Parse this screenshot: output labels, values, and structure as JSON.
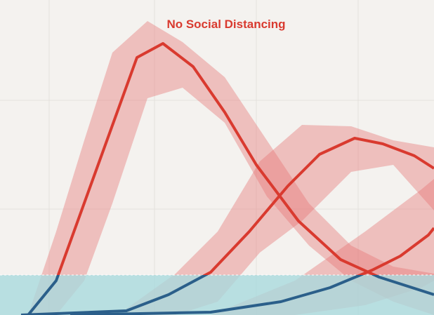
{
  "chart_data": {
    "type": "band-line",
    "title": "No Social Distancing",
    "xlim": [
      0,
      618
    ],
    "ylim": [
      0,
      449
    ],
    "xticks": [
      70,
      220,
      365,
      510
    ],
    "yticks": [
      151,
      306
    ],
    "grid": true,
    "capacity": 57,
    "line_color": "#d93a2f",
    "below_color": "#2b5f8a",
    "band_color": "#e57373",
    "capacity_color": "#a9d9dd",
    "bands": [
      {
        "x": [
          40,
          80,
          120,
          160,
          210,
          260,
          320,
          380,
          440,
          500,
          560,
          618
        ],
        "upper": [
          0,
          119,
          249,
          374,
          419,
          389,
          339,
          249,
          159,
          99,
          69,
          59
        ],
        "lower": [
          0,
          0,
          49,
          159,
          309,
          324,
          274,
          169,
          99,
          49,
          19,
          0
        ]
      },
      {
        "x": [
          180,
          250,
          310,
          370,
          430,
          500,
          560,
          618
        ],
        "upper": [
          9,
          59,
          119,
          219,
          271,
          269,
          249,
          239
        ],
        "lower": [
          0,
          0,
          19,
          89,
          134,
          204,
          214,
          149
        ]
      },
      {
        "x": [
          300,
          420,
          520,
          600,
          618
        ],
        "upper": [
          0,
          49,
          119,
          179,
          194
        ],
        "lower": [
          0,
          0,
          14,
          39,
          49
        ]
      }
    ],
    "lines": [
      {
        "x": [
          40,
          80,
          195,
          232,
          275,
          320,
          365,
          425,
          485,
          540,
          618
        ],
        "values": [
          0,
          49,
          367,
          387,
          354,
          289,
          214,
          134,
          79,
          54,
          29
        ]
      },
      {
        "x": [
          30,
          180,
          240,
          300,
          355,
          410,
          455,
          505,
          545,
          590,
          618
        ],
        "values": [
          0,
          6,
          29,
          61,
          119,
          184,
          229,
          252,
          244,
          227,
          209
        ]
      },
      {
        "x": [
          100,
          300,
          400,
          470,
          530,
          570,
          610,
          618
        ],
        "values": [
          0,
          4,
          19,
          39,
          64,
          84,
          114,
          124
        ]
      }
    ]
  }
}
